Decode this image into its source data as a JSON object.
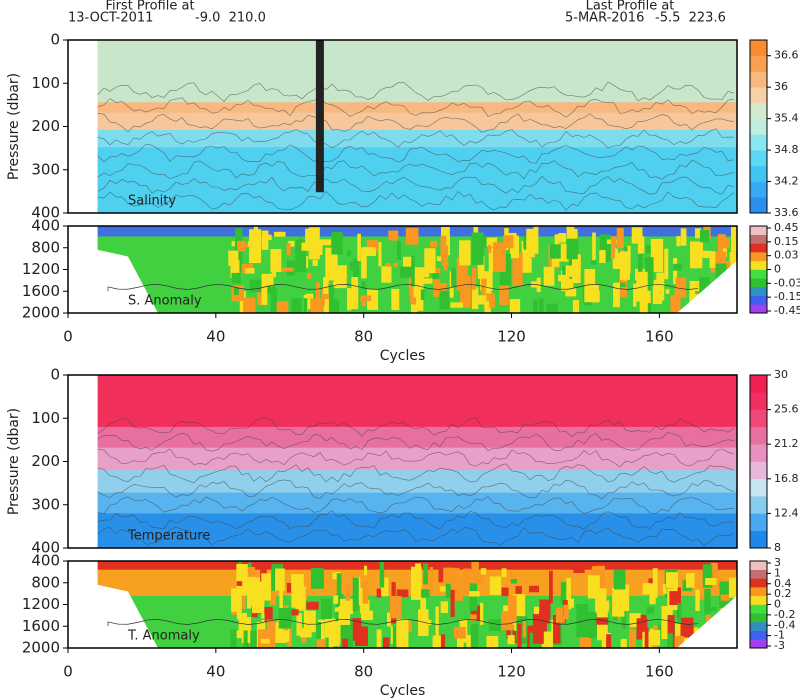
{
  "header": {
    "first_title": "First Profile at",
    "first_date": "13-OCT-2011",
    "first_pos": "-9.0  210.0",
    "last_title": "Last Profile at",
    "last_date": "5-MAR-2016",
    "last_pos": "-5.5  223.6"
  },
  "chart_data": [
    {
      "type": "contour",
      "label": "Salinity",
      "ylabel": "Pressure (dbar)",
      "ylim": [
        0,
        400
      ],
      "yticks": [
        0,
        100,
        200,
        300,
        400
      ],
      "xlim": [
        0,
        181
      ],
      "colorbar": {
        "clim": [
          33.6,
          36.9
        ],
        "levels": [
          36.6,
          36,
          35.4,
          34.8,
          34.2,
          33.6
        ],
        "colors": [
          "#2b8ff0",
          "#36a8f4",
          "#40c4f4",
          "#5cd8f4",
          "#8ae6f0",
          "#bfeee0",
          "#d4ead0",
          "#f8d0a8",
          "#f8b880",
          "#f8a050",
          "#f88c30"
        ]
      }
    },
    {
      "type": "contour",
      "label": "S. Anomaly",
      "ylim": [
        400,
        2000
      ],
      "yticks": [
        400,
        800,
        1200,
        1600,
        2000
      ],
      "xlim": [
        0,
        181
      ],
      "xticks": [
        0,
        40,
        80,
        120,
        160
      ],
      "xlabel": "Cycles",
      "colorbar": {
        "levels": [
          0.45,
          0.15,
          0.03,
          0,
          -0.03,
          -0.15,
          -0.45
        ],
        "colors": [
          "#a040f0",
          "#4060f0",
          "#3090c0",
          "#30c030",
          "#40e040",
          "#f8e020",
          "#f89820",
          "#e03020",
          "#c07070",
          "#f0c0c0"
        ]
      }
    },
    {
      "type": "contour",
      "label": "Temperature",
      "ylabel": "Pressure (dbar)",
      "ylim": [
        0,
        400
      ],
      "yticks": [
        0,
        100,
        200,
        300,
        400
      ],
      "xlim": [
        0,
        181
      ],
      "colorbar": {
        "clim": [
          8,
          30
        ],
        "levels": [
          30,
          25.6,
          21.2,
          16.8,
          12.4,
          8
        ],
        "colors": [
          "#1e88e8",
          "#48a8f0",
          "#88ccf0",
          "#c8e4f0",
          "#e8b8d8",
          "#e890c0",
          "#e870a0",
          "#f04878",
          "#f03060",
          "#f02050"
        ]
      }
    },
    {
      "type": "contour",
      "label": "T. Anomaly",
      "ylim": [
        400,
        2000
      ],
      "yticks": [
        400,
        800,
        1200,
        1600,
        2000
      ],
      "xlim": [
        0,
        181
      ],
      "xticks": [
        0,
        40,
        80,
        120,
        160
      ],
      "xlabel": "Cycles",
      "colorbar": {
        "levels": [
          3,
          1,
          0.4,
          0.2,
          0,
          -0.2,
          -0.4,
          -1,
          -3
        ],
        "colors": [
          "#a040f0",
          "#4060f0",
          "#3090c0",
          "#30c030",
          "#40e040",
          "#f8e020",
          "#f89820",
          "#e03020",
          "#c07070",
          "#f0c0c0"
        ]
      }
    }
  ]
}
